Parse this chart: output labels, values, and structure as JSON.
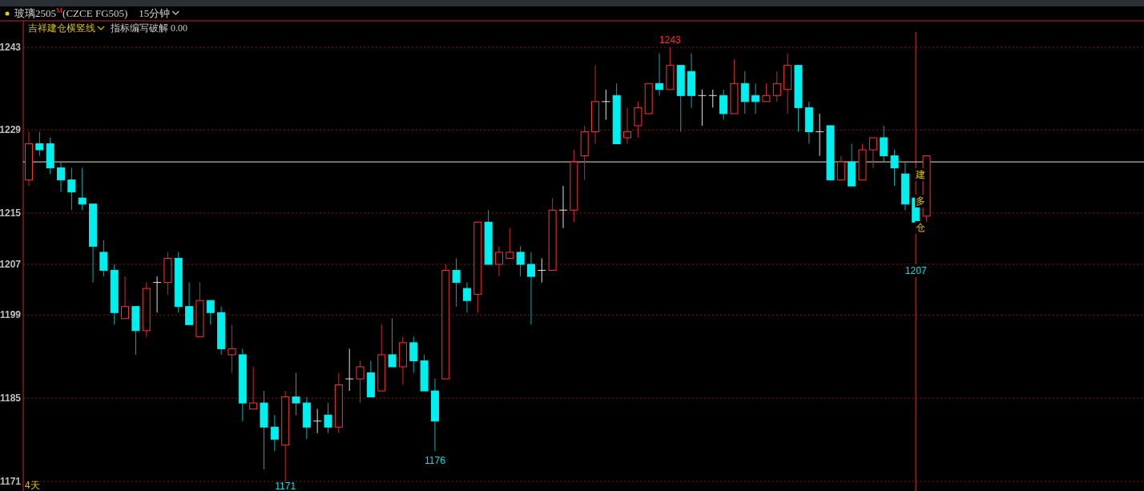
{
  "chart_data": {
    "type": "candlestick",
    "title": "玻璃2505$^{M}$(CZCE FG505)",
    "subtitle": "15分钟",
    "categories": [
      null,
      null,
      null,
      null,
      null,
      null,
      null,
      null,
      null,
      null,
      null,
      null,
      null,
      null,
      null,
      null,
      null,
      null,
      null,
      null,
      null,
      null,
      null,
      null,
      null,
      null,
      null,
      null,
      null,
      null,
      null,
      null,
      null,
      null,
      null,
      null,
      null,
      null,
      null,
      null,
      null,
      null,
      null,
      null,
      null,
      null,
      null,
      null,
      null,
      null,
      null,
      null,
      null,
      null,
      null,
      null,
      null,
      null,
      null,
      null,
      null,
      null,
      null,
      null,
      null,
      null,
      null,
      null,
      null,
      null,
      null,
      null,
      null,
      null,
      null,
      null,
      null,
      null,
      null,
      null,
      null,
      null,
      null,
      null,
      null
    ],
    "ohlc": [
      [
        1221,
        1229,
        1220,
        1227
      ],
      [
        1227,
        1229,
        1225,
        1226
      ],
      [
        1227,
        1228,
        1222,
        1223
      ],
      [
        1223,
        1224,
        1219,
        1221
      ],
      [
        1221,
        1223,
        1216,
        1219
      ],
      [
        1218,
        1223,
        1216,
        1217
      ],
      [
        1217,
        1217,
        1204,
        1210
      ],
      [
        1209,
        1211,
        1205,
        1206
      ],
      [
        1206,
        1207,
        1197,
        1199
      ],
      [
        1198,
        1205,
        1198,
        1200
      ],
      [
        1200,
        1200,
        1192,
        1196
      ],
      [
        1196,
        1204,
        1195,
        1203
      ],
      [
        1204,
        1205,
        1199,
        1204
      ],
      [
        1204,
        1209,
        1202,
        1208
      ],
      [
        1208,
        1209,
        1199,
        1200
      ],
      [
        1200,
        1204,
        1197,
        1197
      ],
      [
        1195,
        1204,
        1195,
        1201
      ],
      [
        1201,
        1201,
        1197,
        1199
      ],
      [
        1199,
        1200,
        1192,
        1193
      ],
      [
        1192,
        1197,
        1189,
        1193
      ],
      [
        1192,
        1193,
        1181,
        1184
      ],
      [
        1183,
        1190,
        1183,
        1184
      ],
      [
        1184,
        1186,
        1173,
        1180
      ],
      [
        1180,
        1182,
        1176,
        1178
      ],
      [
        1177,
        1186,
        1171,
        1185
      ],
      [
        1185,
        1189,
        1182,
        1184
      ],
      [
        1184,
        1185,
        1178,
        1180
      ],
      [
        1181,
        1183,
        1179,
        1181
      ],
      [
        1182,
        1184,
        1179,
        1180
      ],
      [
        1180,
        1189,
        1179,
        1187
      ],
      [
        1188,
        1193,
        1186,
        1188
      ],
      [
        1188,
        1191,
        1184,
        1190
      ],
      [
        1189,
        1191,
        1185,
        1185
      ],
      [
        1186,
        1197,
        1186,
        1192
      ],
      [
        1192,
        1198,
        1190,
        1190
      ],
      [
        1190,
        1195,
        1187,
        1194
      ],
      [
        1194,
        1195,
        1189,
        1191
      ],
      [
        1191,
        1192,
        1186,
        1186
      ],
      [
        1186,
        1188,
        1176,
        1181
      ],
      [
        1188,
        1207,
        1188,
        1206
      ],
      [
        1206,
        1208,
        1200,
        1204
      ],
      [
        1203,
        1204,
        1199,
        1201
      ],
      [
        1202,
        1214,
        1199,
        1214
      ],
      [
        1214,
        1216,
        1207,
        1207
      ],
      [
        1207,
        1210,
        1205,
        1209
      ],
      [
        1208,
        1213,
        1208,
        1209
      ],
      [
        1209,
        1210,
        1205,
        1207
      ],
      [
        1207,
        1209,
        1197,
        1205
      ],
      [
        1206,
        1208,
        1204,
        1206
      ],
      [
        1206,
        1218,
        1206,
        1216
      ],
      [
        1216,
        1220,
        1213,
        1216
      ],
      [
        1216,
        1226,
        1214,
        1224
      ],
      [
        1225,
        1230,
        1221,
        1229
      ],
      [
        1229,
        1240,
        1227,
        1234
      ],
      [
        1234,
        1236,
        1231,
        1234
      ],
      [
        1235,
        1237,
        1227,
        1227
      ],
      [
        1228,
        1233,
        1227,
        1229
      ],
      [
        1230,
        1234,
        1228,
        1233
      ],
      [
        1232,
        1237,
        1232,
        1237
      ],
      [
        1237,
        1242,
        1235,
        1236
      ],
      [
        1236,
        1243,
        1236,
        1240
      ],
      [
        1240,
        1240,
        1229,
        1235
      ],
      [
        1239,
        1242,
        1233,
        1235
      ],
      [
        1235,
        1236,
        1230,
        1235
      ],
      [
        1235,
        1236,
        1233,
        1235
      ],
      [
        1235,
        1236,
        1231,
        1232
      ],
      [
        1232,
        1241,
        1232,
        1237
      ],
      [
        1237,
        1239,
        1232,
        1234
      ],
      [
        1235,
        1237,
        1232,
        1234
      ],
      [
        1234,
        1237,
        1234,
        1235
      ],
      [
        1235,
        1239,
        1234,
        1237
      ],
      [
        1236,
        1242,
        1232,
        1240
      ],
      [
        1240,
        1240,
        1229,
        1233
      ],
      [
        1233,
        1234,
        1227,
        1229
      ],
      [
        1229,
        1232,
        1225,
        1229
      ],
      [
        1230,
        1230,
        1221,
        1221
      ],
      [
        1221,
        1225,
        1221,
        1224
      ],
      [
        1224,
        1227,
        1220,
        1220
      ],
      [
        1221,
        1227,
        1221,
        1226
      ],
      [
        1226,
        1228,
        1223,
        1228
      ],
      [
        1228,
        1230,
        1224,
        1225
      ],
      [
        1225,
        1226,
        1220,
        1223
      ],
      [
        1222,
        1224,
        1216,
        1217
      ],
      [
        1218,
        1218,
        1214,
        1214
      ],
      [
        1215,
        1225,
        1214,
        1225
      ]
    ],
    "ylim": [
      1169.4,
      1247.4
    ],
    "yticks": [
      1243,
      {
        "value": 1229.3,
        "label": "1229"
      },
      {
        "value": 1215.5,
        "label": "1215"
      },
      1207,
      {
        "value": 1198.6,
        "label": "1199"
      },
      {
        "value": 1184.8,
        "label": "1185"
      },
      1171
    ],
    "grid": "y",
    "tick_labels": "y",
    "ref_lines": [
      {
        "axis": "y",
        "value": 1224,
        "color": "#e6e6c8"
      }
    ],
    "annotations": [
      {
        "text": "1243",
        "y": 1243
      },
      {
        "text": "1171",
        "y": 1171
      },
      {
        "text": "1176",
        "y": 1176
      },
      "建多仓",
      "1207",
      "4天",
      "吉祥建仓横竖线",
      "指标编写破解 0.00"
    ]
  }
}
